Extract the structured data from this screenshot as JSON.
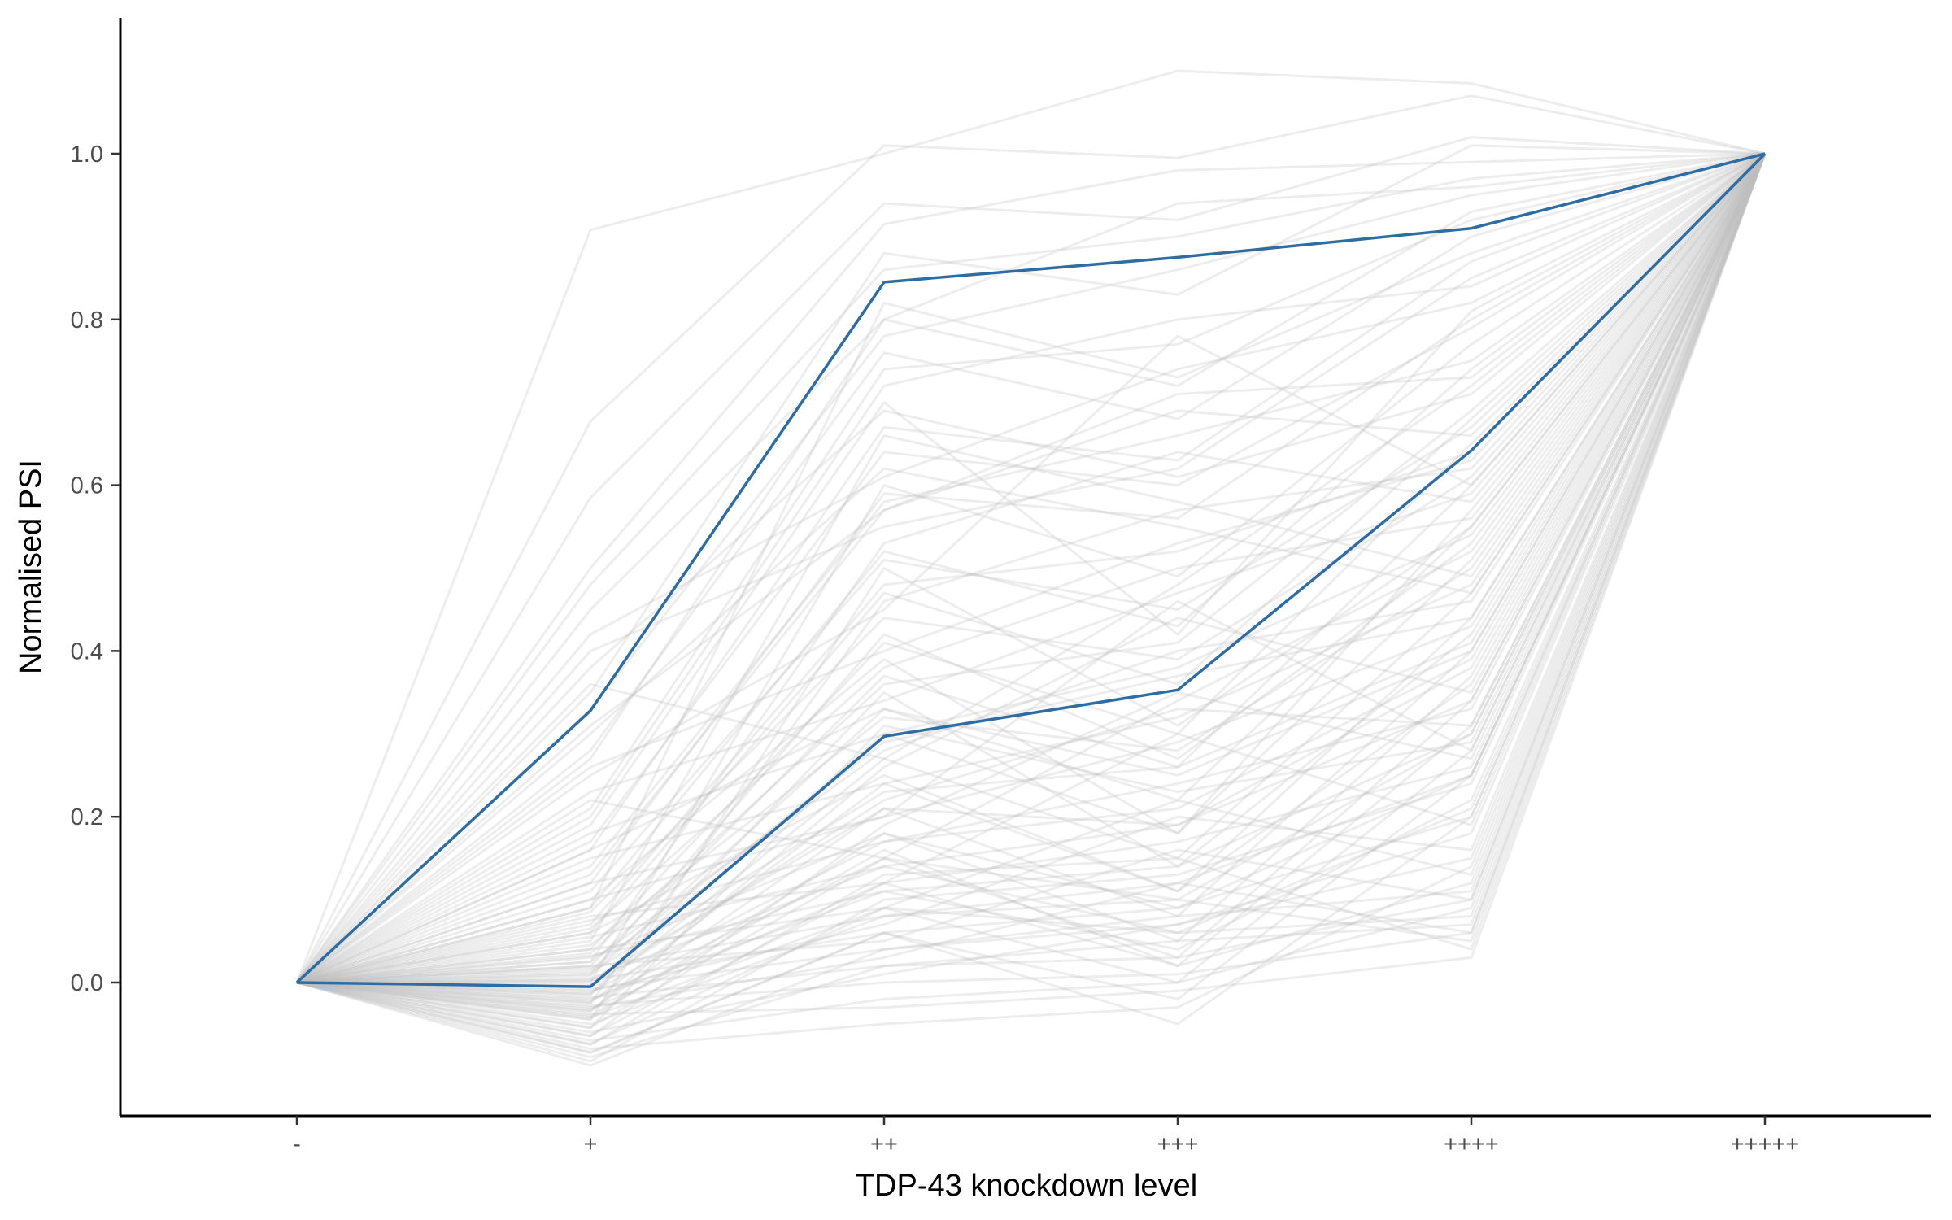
{
  "chart_data": {
    "type": "line",
    "title": "",
    "xlabel": "TDP-43 knockdown level",
    "ylabel": "Normalised PSI",
    "categories": [
      "-",
      "+",
      "++",
      "+++",
      "++++",
      "+++++"
    ],
    "ylim": [
      -0.16,
      1.16
    ],
    "yticks": [
      0.0,
      0.2,
      0.4,
      0.6,
      0.8,
      1.0
    ],
    "ytick_labels": [
      "0.0",
      "0.2",
      "0.4",
      "0.6",
      "0.8",
      "1.0"
    ],
    "grid": false,
    "legend": "none",
    "background_series_color": "#bdbdbd",
    "highlight_color": "#2e6da4",
    "highlight_series": [
      {
        "values": [
          0.0,
          0.328,
          0.845,
          0.875,
          0.91,
          1.0
        ]
      },
      {
        "values": [
          0.0,
          -0.005,
          0.297,
          0.353,
          0.642,
          1.0
        ]
      }
    ],
    "background_series": [
      {
        "values": [
          0.0,
          0.908,
          1.0,
          1.1,
          1.085,
          1.0
        ]
      },
      {
        "values": [
          0.0,
          0.677,
          1.01,
          0.995,
          1.07,
          1.0
        ]
      },
      {
        "values": [
          0.0,
          0.585,
          0.94,
          0.92,
          1.02,
          1.0
        ]
      },
      {
        "values": [
          0.0,
          0.5,
          0.915,
          0.98,
          0.99,
          1.0
        ]
      },
      {
        "values": [
          0.0,
          0.45,
          0.8,
          0.72,
          0.93,
          1.0
        ]
      },
      {
        "values": [
          0.0,
          0.4,
          0.55,
          0.62,
          0.85,
          1.0
        ]
      },
      {
        "values": [
          0.0,
          0.36,
          0.27,
          0.48,
          0.72,
          1.0
        ]
      },
      {
        "values": [
          0.0,
          0.3,
          0.62,
          0.55,
          0.47,
          1.0
        ]
      },
      {
        "values": [
          0.0,
          0.25,
          0.45,
          0.78,
          0.6,
          1.0
        ]
      },
      {
        "values": [
          0.0,
          0.22,
          0.15,
          0.34,
          0.52,
          1.0
        ]
      },
      {
        "values": [
          0.0,
          0.19,
          0.7,
          0.42,
          0.81,
          1.0
        ]
      },
      {
        "values": [
          0.0,
          0.16,
          0.33,
          0.25,
          0.4,
          1.0
        ]
      },
      {
        "values": [
          0.0,
          0.14,
          0.58,
          0.66,
          0.75,
          1.0
        ]
      },
      {
        "values": [
          0.0,
          0.12,
          0.2,
          0.46,
          0.28,
          1.0
        ]
      },
      {
        "values": [
          0.0,
          0.1,
          0.39,
          0.18,
          0.57,
          1.0
        ]
      },
      {
        "values": [
          0.0,
          0.09,
          0.82,
          0.73,
          0.88,
          1.0
        ]
      },
      {
        "values": [
          0.0,
          0.08,
          0.12,
          0.3,
          0.19,
          1.0
        ]
      },
      {
        "values": [
          0.0,
          0.07,
          0.48,
          0.52,
          0.64,
          1.0
        ]
      },
      {
        "values": [
          0.0,
          0.06,
          0.25,
          0.11,
          0.36,
          1.0
        ]
      },
      {
        "values": [
          0.0,
          0.05,
          0.66,
          0.58,
          0.49,
          1.0
        ]
      },
      {
        "values": [
          0.0,
          0.04,
          0.09,
          0.22,
          0.13,
          1.0
        ]
      },
      {
        "values": [
          0.0,
          0.035,
          0.36,
          0.41,
          0.69,
          1.0
        ]
      },
      {
        "values": [
          0.0,
          0.03,
          0.18,
          0.09,
          0.25,
          1.0
        ]
      },
      {
        "values": [
          0.0,
          0.025,
          0.53,
          0.64,
          0.58,
          1.0
        ]
      },
      {
        "values": [
          0.0,
          0.02,
          0.05,
          0.16,
          0.1,
          1.0
        ]
      },
      {
        "values": [
          0.0,
          0.015,
          0.29,
          0.37,
          0.44,
          1.0
        ]
      },
      {
        "values": [
          0.0,
          0.01,
          0.42,
          0.27,
          0.53,
          1.0
        ]
      },
      {
        "values": [
          0.0,
          0.005,
          0.14,
          0.06,
          0.08,
          1.0
        ]
      },
      {
        "values": [
          0.0,
          0.0,
          0.6,
          0.49,
          0.77,
          1.0
        ]
      },
      {
        "values": [
          0.0,
          -0.005,
          0.22,
          0.33,
          0.31,
          1.0
        ]
      },
      {
        "values": [
          0.0,
          -0.01,
          0.07,
          0.2,
          0.16,
          1.0
        ]
      },
      {
        "values": [
          0.0,
          -0.015,
          0.35,
          0.14,
          0.42,
          1.0
        ]
      },
      {
        "values": [
          0.0,
          -0.02,
          0.11,
          0.04,
          0.22,
          1.0
        ]
      },
      {
        "values": [
          0.0,
          -0.025,
          0.46,
          0.57,
          0.62,
          1.0
        ]
      },
      {
        "values": [
          0.0,
          -0.03,
          0.03,
          0.12,
          0.06,
          1.0
        ]
      },
      {
        "values": [
          0.0,
          -0.035,
          0.26,
          0.44,
          0.35,
          1.0
        ]
      },
      {
        "values": [
          0.0,
          -0.04,
          0.16,
          0.02,
          0.12,
          1.0
        ]
      },
      {
        "values": [
          0.0,
          -0.045,
          0.5,
          0.31,
          0.55,
          1.0
        ]
      },
      {
        "values": [
          0.0,
          -0.05,
          0.08,
          0.1,
          0.05,
          1.0
        ]
      },
      {
        "values": [
          0.0,
          -0.055,
          0.31,
          0.23,
          0.29,
          1.0
        ]
      },
      {
        "values": [
          0.0,
          -0.06,
          0.01,
          0.07,
          0.18,
          1.0
        ]
      },
      {
        "values": [
          0.0,
          -0.065,
          0.19,
          0.35,
          0.27,
          1.0
        ]
      },
      {
        "values": [
          0.0,
          -0.07,
          -0.02,
          0.0,
          0.09,
          1.0
        ]
      },
      {
        "values": [
          0.0,
          -0.075,
          0.13,
          0.15,
          0.04,
          1.0
        ]
      },
      {
        "values": [
          0.0,
          -0.08,
          -0.05,
          -0.03,
          0.14,
          1.0
        ]
      },
      {
        "values": [
          0.0,
          -0.085,
          0.06,
          -0.05,
          0.2,
          1.0
        ]
      },
      {
        "values": [
          0.0,
          -0.09,
          0.02,
          0.05,
          0.07,
          1.0
        ]
      },
      {
        "values": [
          0.0,
          -0.095,
          0.1,
          0.13,
          0.24,
          1.0
        ]
      },
      {
        "values": [
          0.0,
          -0.1,
          0.04,
          0.08,
          0.11,
          1.0
        ]
      },
      {
        "values": [
          0.0,
          0.33,
          0.78,
          0.86,
          0.95,
          1.0
        ]
      },
      {
        "values": [
          0.0,
          0.28,
          0.76,
          0.68,
          0.9,
          1.0
        ]
      },
      {
        "values": [
          0.0,
          0.2,
          0.72,
          0.8,
          0.84,
          1.0
        ]
      },
      {
        "values": [
          0.0,
          0.17,
          0.64,
          0.6,
          0.79,
          1.0
        ]
      },
      {
        "values": [
          0.0,
          0.13,
          0.57,
          0.71,
          0.73,
          1.0
        ]
      },
      {
        "values": [
          0.0,
          0.11,
          0.51,
          0.45,
          0.67,
          1.0
        ]
      },
      {
        "values": [
          0.0,
          0.085,
          0.44,
          0.39,
          0.61,
          1.0
        ]
      },
      {
        "values": [
          0.0,
          0.065,
          0.38,
          0.5,
          0.56,
          1.0
        ]
      },
      {
        "values": [
          0.0,
          0.045,
          0.32,
          0.28,
          0.5,
          1.0
        ]
      },
      {
        "values": [
          0.0,
          0.025,
          0.28,
          0.4,
          0.46,
          1.0
        ]
      },
      {
        "values": [
          0.0,
          0.012,
          0.23,
          0.26,
          0.41,
          1.0
        ]
      },
      {
        "values": [
          0.0,
          0.002,
          0.21,
          0.19,
          0.38,
          1.0
        ]
      },
      {
        "values": [
          0.0,
          -0.012,
          0.17,
          0.24,
          0.33,
          1.0
        ]
      },
      {
        "values": [
          0.0,
          -0.022,
          0.15,
          0.1,
          0.3,
          1.0
        ]
      },
      {
        "values": [
          0.0,
          -0.032,
          0.12,
          0.17,
          0.26,
          1.0
        ]
      },
      {
        "values": [
          0.0,
          -0.042,
          0.09,
          0.06,
          0.21,
          1.0
        ]
      },
      {
        "values": [
          0.0,
          0.42,
          0.61,
          0.74,
          0.82,
          1.0
        ]
      },
      {
        "values": [
          0.0,
          0.38,
          0.69,
          0.61,
          0.71,
          1.0
        ]
      },
      {
        "values": [
          0.0,
          0.31,
          0.57,
          0.69,
          0.66,
          1.0
        ]
      },
      {
        "values": [
          0.0,
          0.26,
          0.4,
          0.53,
          0.63,
          1.0
        ]
      },
      {
        "values": [
          0.0,
          0.23,
          0.34,
          0.47,
          0.59,
          1.0
        ]
      },
      {
        "values": [
          0.0,
          0.18,
          0.3,
          0.38,
          0.54,
          1.0
        ]
      },
      {
        "values": [
          0.0,
          0.15,
          0.24,
          0.32,
          0.48,
          1.0
        ]
      },
      {
        "values": [
          0.0,
          0.1,
          0.2,
          0.29,
          0.43,
          1.0
        ]
      },
      {
        "values": [
          0.0,
          0.075,
          0.17,
          0.21,
          0.39,
          1.0
        ]
      },
      {
        "values": [
          0.0,
          0.055,
          0.14,
          0.19,
          0.34,
          1.0
        ]
      },
      {
        "values": [
          0.0,
          0.032,
          0.11,
          0.14,
          0.3,
          1.0
        ]
      },
      {
        "values": [
          0.0,
          0.018,
          0.08,
          0.12,
          0.25,
          1.0
        ]
      },
      {
        "values": [
          0.0,
          0.003,
          0.06,
          0.09,
          0.2,
          1.0
        ]
      },
      {
        "values": [
          0.0,
          -0.008,
          0.04,
          0.07,
          0.15,
          1.0
        ]
      },
      {
        "values": [
          0.0,
          -0.018,
          0.02,
          0.03,
          0.1,
          1.0
        ]
      },
      {
        "values": [
          0.0,
          -0.028,
          0.0,
          0.01,
          0.06,
          1.0
        ]
      },
      {
        "values": [
          0.0,
          -0.038,
          -0.03,
          -0.01,
          0.03,
          1.0
        ]
      },
      {
        "values": [
          0.0,
          0.48,
          0.86,
          0.9,
          0.97,
          1.0
        ]
      },
      {
        "values": [
          0.0,
          0.35,
          0.88,
          0.83,
          1.01,
          1.0
        ]
      },
      {
        "values": [
          0.0,
          0.27,
          0.8,
          0.94,
          0.96,
          1.0
        ]
      },
      {
        "values": [
          0.0,
          0.21,
          0.74,
          0.77,
          0.92,
          1.0
        ]
      },
      {
        "values": [
          0.0,
          0.16,
          0.67,
          0.63,
          0.87,
          1.0
        ]
      },
      {
        "values": [
          0.0,
          0.12,
          0.59,
          0.56,
          0.8,
          1.0
        ]
      },
      {
        "values": [
          0.0,
          0.09,
          0.52,
          0.43,
          0.74,
          1.0
        ]
      },
      {
        "values": [
          0.0,
          0.06,
          0.47,
          0.36,
          0.68,
          1.0
        ]
      },
      {
        "values": [
          0.0,
          0.04,
          0.41,
          0.3,
          0.65,
          1.0
        ]
      },
      {
        "values": [
          0.0,
          0.02,
          0.37,
          0.26,
          0.6,
          1.0
        ]
      },
      {
        "values": [
          0.0,
          0.008,
          0.33,
          0.22,
          0.55,
          1.0
        ]
      },
      {
        "values": [
          0.0,
          -0.003,
          0.3,
          0.18,
          0.51,
          1.0
        ]
      },
      {
        "values": [
          0.0,
          -0.014,
          0.27,
          0.15,
          0.47,
          1.0
        ]
      },
      {
        "values": [
          0.0,
          -0.024,
          0.24,
          0.11,
          0.44,
          1.0
        ]
      },
      {
        "values": [
          0.0,
          -0.034,
          0.21,
          0.08,
          0.4,
          1.0
        ]
      },
      {
        "values": [
          0.0,
          -0.044,
          0.18,
          0.05,
          0.37,
          1.0
        ]
      },
      {
        "values": [
          0.0,
          -0.054,
          0.15,
          0.03,
          0.34,
          1.0
        ]
      },
      {
        "values": [
          0.0,
          -0.064,
          0.12,
          0.02,
          0.31,
          1.0
        ]
      },
      {
        "values": [
          0.0,
          -0.074,
          0.09,
          0.0,
          0.28,
          1.0
        ]
      },
      {
        "values": [
          0.0,
          -0.084,
          0.06,
          -0.02,
          0.25,
          1.0
        ]
      }
    ]
  }
}
